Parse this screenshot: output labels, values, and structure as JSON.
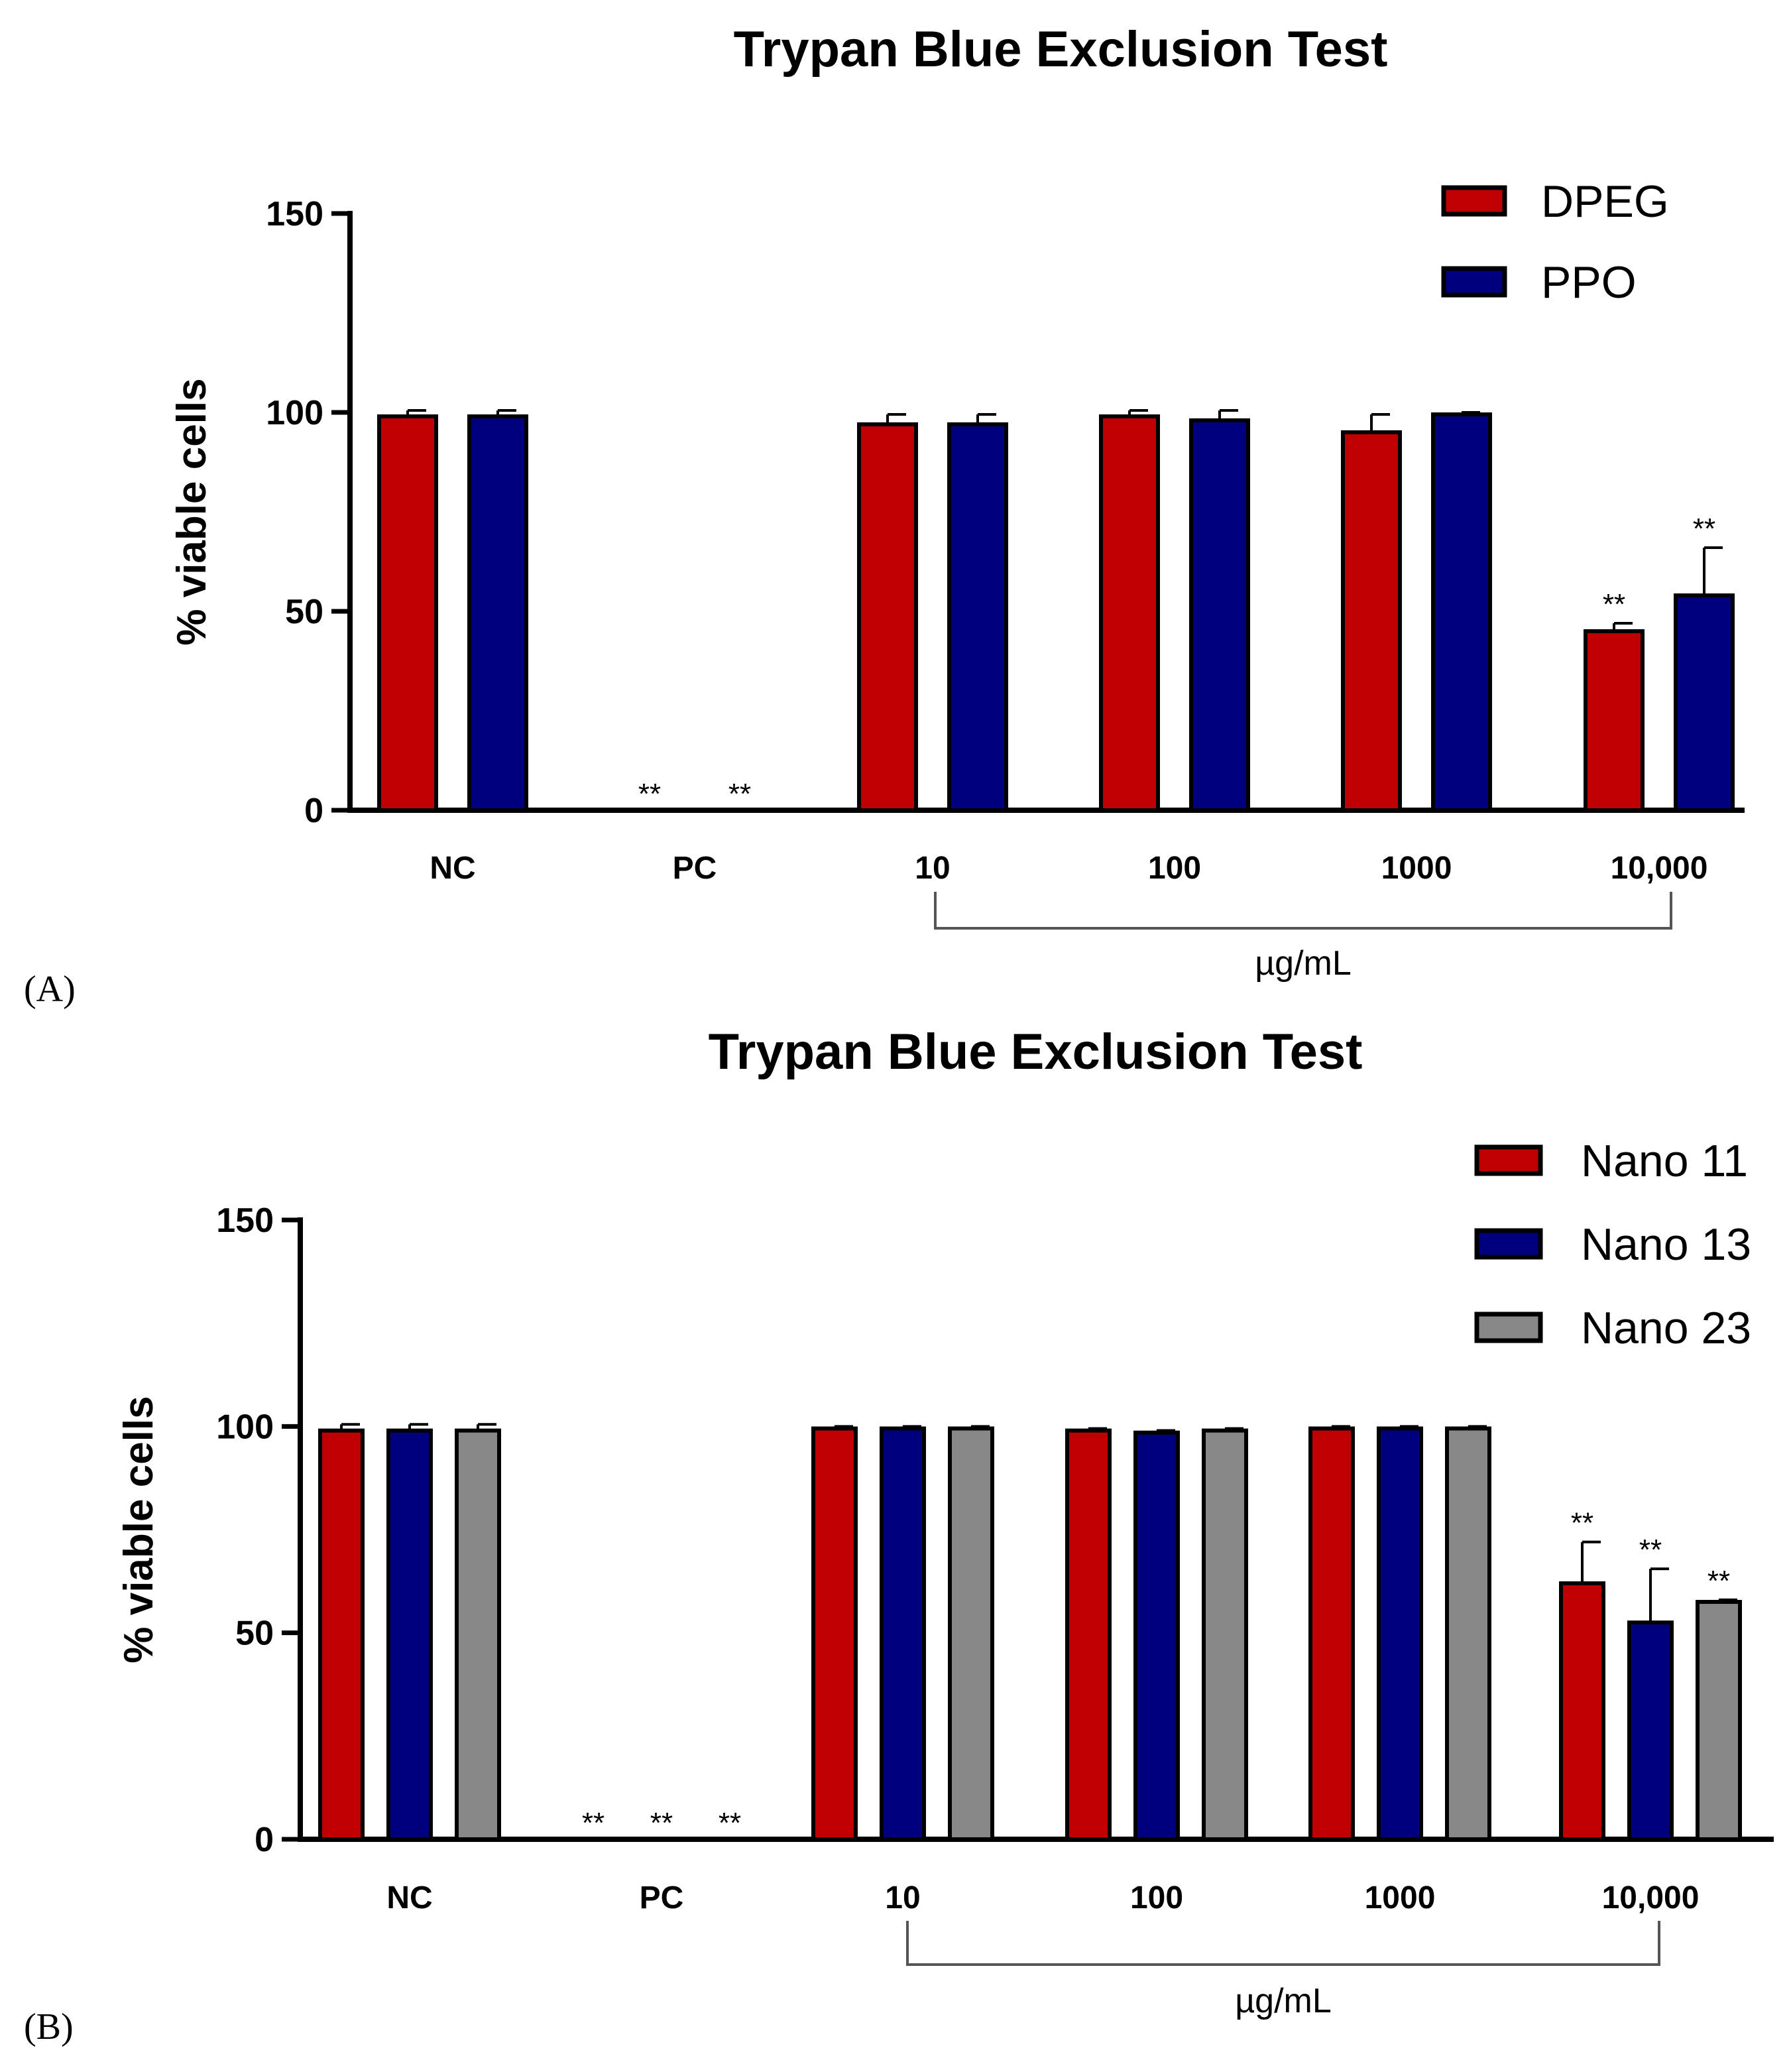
{
  "chart_data": [
    {
      "type": "bar",
      "panel_label": "(A)",
      "title": "Trypan Blue Exclusion Test",
      "ylabel": "% viable cells",
      "xlabel": "µg/mL",
      "ylim": [
        0,
        150
      ],
      "yticks": [
        "0",
        "50",
        "100",
        "150"
      ],
      "categories": [
        "NC",
        "PC",
        "10",
        "100",
        "1000",
        "10,000"
      ],
      "series": [
        {
          "name": "DPEG",
          "color": "#c00000",
          "values": [
            99,
            0,
            97,
            99,
            95,
            45
          ],
          "errors": [
            1.5,
            0,
            2.5,
            1.5,
            4.5,
            2
          ],
          "significance": [
            "",
            "**",
            "",
            "",
            "",
            "**"
          ]
        },
        {
          "name": "PPO",
          "color": "#00007f",
          "values": [
            99,
            0,
            97,
            98,
            99.5,
            54
          ],
          "errors": [
            1.5,
            0,
            2.5,
            2.5,
            0.5,
            12
          ],
          "significance": [
            "",
            "**",
            "",
            "",
            "",
            "**"
          ]
        }
      ],
      "legend_position": "top-right"
    },
    {
      "type": "bar",
      "panel_label": "(B)",
      "title": "Trypan Blue Exclusion Test",
      "ylabel": "% viable cells",
      "xlabel": "µg/mL",
      "ylim": [
        0,
        150
      ],
      "yticks": [
        "0",
        "50",
        "100",
        "150"
      ],
      "categories": [
        "NC",
        "PC",
        "10",
        "100",
        "1000",
        "10,000"
      ],
      "series": [
        {
          "name": "Nano 11",
          "color": "#c00000",
          "values": [
            99,
            0,
            99.5,
            99,
            99.5,
            62
          ],
          "errors": [
            1.5,
            0,
            0.5,
            0.5,
            0.5,
            10
          ],
          "significance": [
            "",
            "**",
            "",
            "",
            "",
            "**"
          ]
        },
        {
          "name": "Nano 13",
          "color": "#00007f",
          "values": [
            99,
            0,
            99.5,
            98.5,
            99.5,
            52.5
          ],
          "errors": [
            1.5,
            0,
            0.5,
            0.5,
            0.5,
            13
          ],
          "significance": [
            "",
            "**",
            "",
            "",
            "",
            "**"
          ]
        },
        {
          "name": "Nano 23",
          "color": "#888888",
          "values": [
            99,
            0,
            99.5,
            99,
            99.5,
            57.5
          ],
          "errors": [
            1.5,
            0,
            0.5,
            0.5,
            0.5,
            0.5
          ],
          "significance": [
            "",
            "**",
            "",
            "",
            "",
            "**"
          ]
        }
      ],
      "legend_position": "top-right"
    }
  ]
}
